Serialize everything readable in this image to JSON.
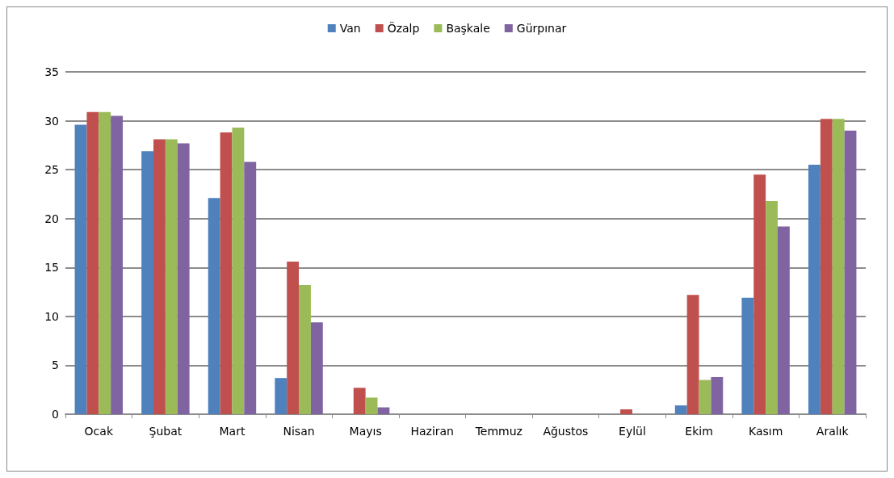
{
  "chart_data": {
    "type": "bar",
    "categories": [
      "Ocak",
      "Şubat",
      "Mart",
      "Nisan",
      "Mayıs",
      "Haziran",
      "Temmuz",
      "Ağustos",
      "Eylül",
      "Ekim",
      "Kasım",
      "Aralık"
    ],
    "series": [
      {
        "name": "Van",
        "color": "#4f81bd",
        "values": [
          29.6,
          26.9,
          22.1,
          3.7,
          0,
          0,
          0,
          0,
          0,
          0.9,
          11.9,
          25.5
        ]
      },
      {
        "name": "Özalp",
        "color": "#c0504d",
        "values": [
          30.9,
          28.1,
          28.8,
          15.6,
          2.7,
          0,
          0,
          0,
          0.5,
          12.2,
          24.5,
          30.2
        ]
      },
      {
        "name": "Başkale",
        "color": "#9bbb59",
        "values": [
          30.9,
          28.1,
          29.3,
          13.2,
          1.7,
          0,
          0,
          0,
          0,
          3.5,
          21.8,
          30.2
        ]
      },
      {
        "name": "Gürpınar",
        "color": "#8064a2",
        "values": [
          30.5,
          27.7,
          25.8,
          9.4,
          0.7,
          0,
          0,
          0,
          0,
          3.8,
          19.2,
          29.0
        ]
      }
    ],
    "ylim": [
      0,
      35
    ],
    "yticks": [
      0,
      5,
      10,
      15,
      20,
      25,
      30,
      35
    ],
    "grid": "y",
    "legend": "top"
  }
}
